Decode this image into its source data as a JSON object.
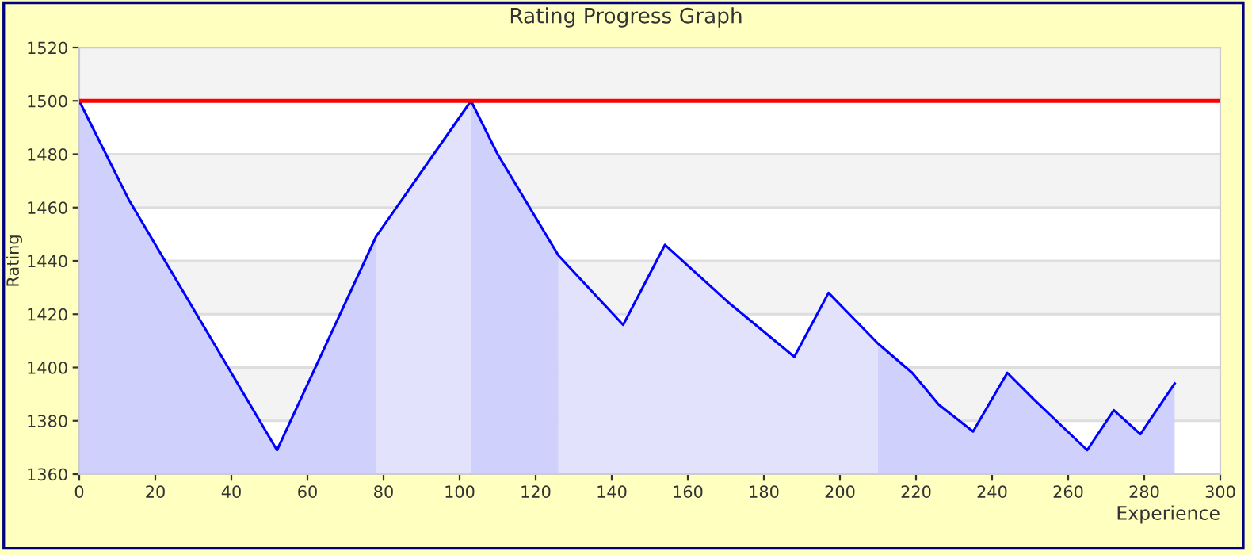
{
  "chart_data": {
    "type": "line",
    "title": "Rating Progress Graph",
    "xlabel": "Experience",
    "ylabel": "Rating",
    "xlim": [
      0,
      300
    ],
    "ylim": [
      1360,
      1520
    ],
    "xticks": [
      0,
      20,
      40,
      60,
      80,
      100,
      120,
      140,
      160,
      180,
      200,
      220,
      240,
      260,
      280,
      300
    ],
    "yticks": [
      1360,
      1380,
      1400,
      1420,
      1440,
      1460,
      1480,
      1500,
      1520
    ],
    "grid": "y",
    "legend": false,
    "marker": "none",
    "line_style": "solid",
    "bands": [
      {
        "axis": "y",
        "from": 1500,
        "to": 1520,
        "color": "#f3f3f3"
      },
      {
        "axis": "y",
        "from": 1460,
        "to": 1480,
        "color": "#f3f3f3"
      },
      {
        "axis": "y",
        "from": 1420,
        "to": 1440,
        "color": "#f3f3f3"
      },
      {
        "axis": "y",
        "from": 1380,
        "to": 1400,
        "color": "#f3f3f3"
      }
    ],
    "ref_lines": [
      {
        "axis": "y",
        "value": 1500,
        "color": "#ff0000",
        "line_style": "solid"
      }
    ],
    "series": [
      {
        "type": "area",
        "color": "#d0d0fc",
        "x": [
          0,
          13,
          52,
          78
        ],
        "values": [
          1500,
          1463,
          1369,
          1449
        ]
      },
      {
        "type": "area",
        "color": "#e2e2fc",
        "x": [
          78,
          103
        ],
        "values": [
          1449,
          1500
        ]
      },
      {
        "type": "area",
        "color": "#d0d0fc",
        "x": [
          103,
          110,
          126
        ],
        "values": [
          1500,
          1480,
          1442
        ]
      },
      {
        "type": "area",
        "color": "#e2e2fc",
        "x": [
          126,
          143,
          154,
          171,
          188,
          197,
          210
        ],
        "values": [
          1442,
          1416,
          1446,
          1424,
          1404,
          1428,
          1409
        ]
      },
      {
        "type": "area",
        "color": "#d0d0fc",
        "x": [
          210,
          219,
          226,
          235,
          244,
          251,
          265,
          272,
          279,
          288
        ],
        "values": [
          1409,
          1398,
          1386,
          1376,
          1398,
          1388,
          1369,
          1384,
          1375,
          1394
        ]
      },
      {
        "color": "#0000ff",
        "x": [
          0,
          13,
          52,
          78,
          103,
          110,
          126,
          143,
          154,
          171,
          188,
          197,
          210,
          219,
          226,
          235,
          244,
          251,
          265,
          272,
          279,
          288
        ],
        "values": [
          1500,
          1463,
          1369,
          1449,
          1500,
          1480,
          1442,
          1416,
          1446,
          1424,
          1404,
          1428,
          1409,
          1398,
          1386,
          1376,
          1398,
          1388,
          1369,
          1384,
          1375,
          1394
        ]
      }
    ]
  }
}
